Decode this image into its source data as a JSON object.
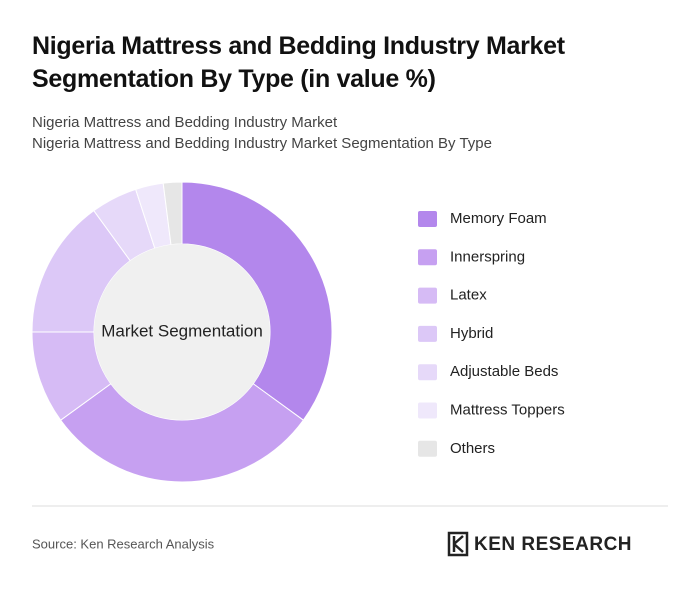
{
  "chart_data": {
    "type": "donut",
    "title": "Nigeria Mattress and Bedding Industry Market Segmentation By Type (in value %)",
    "subtitle": [
      "Nigeria Mattress and Bedding Industry Market",
      "Nigeria Mattress and Bedding Industry Market Segmentation By Type"
    ],
    "center_label": "Market Segmentation",
    "categories": [
      "Memory Foam",
      "Innerspring",
      "Latex",
      "Hybrid",
      "Adjustable Beds",
      "Mattress Toppers",
      "Others"
    ],
    "values": [
      35,
      30,
      10,
      15,
      5,
      3,
      2
    ],
    "colors": [
      "#b387ec",
      "#c6a0f1",
      "#d6bbf5",
      "#dcc8f7",
      "#e6d9f9",
      "#efe8fb",
      "#e6e6e6"
    ],
    "source": "Source: Ken Research Analysis",
    "brand": "KEN RESEARCH"
  }
}
